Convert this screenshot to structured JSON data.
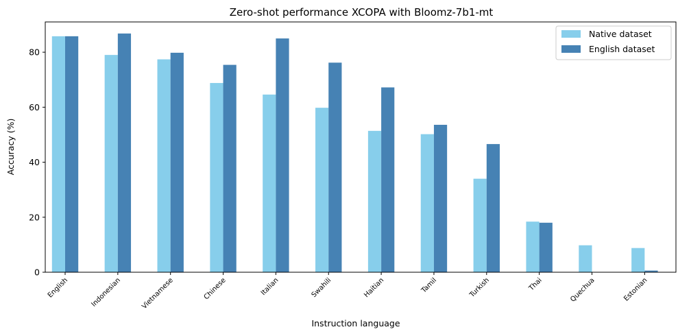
{
  "chart_data": {
    "type": "bar",
    "title": "Zero-shot performance XCOPA with Bloomz-7b1-mt",
    "xlabel": "Instruction language",
    "ylabel": "Accuracy (%)",
    "ylim": [
      0,
      91
    ],
    "yticks": [
      0,
      20,
      40,
      60,
      80
    ],
    "categories": [
      "English",
      "Indonesian",
      "Vietnamese",
      "Chinese",
      "Italian",
      "Swahili",
      "Haitian",
      "Tamil",
      "Turkish",
      "Thai",
      "Quechua",
      "Estonian"
    ],
    "series": [
      {
        "name": "Native dataset",
        "color": "#87ceeb",
        "values": [
          85.8,
          79.0,
          77.4,
          68.8,
          64.6,
          59.8,
          51.4,
          50.2,
          34.0,
          18.4,
          9.8,
          8.8
        ]
      },
      {
        "name": "English dataset",
        "color": "#4682b4",
        "values": [
          85.8,
          86.8,
          79.8,
          75.4,
          85.0,
          76.2,
          67.2,
          53.6,
          46.6,
          18.0,
          0,
          0.6
        ]
      }
    ],
    "grid": false,
    "legend_position": "top-right"
  }
}
